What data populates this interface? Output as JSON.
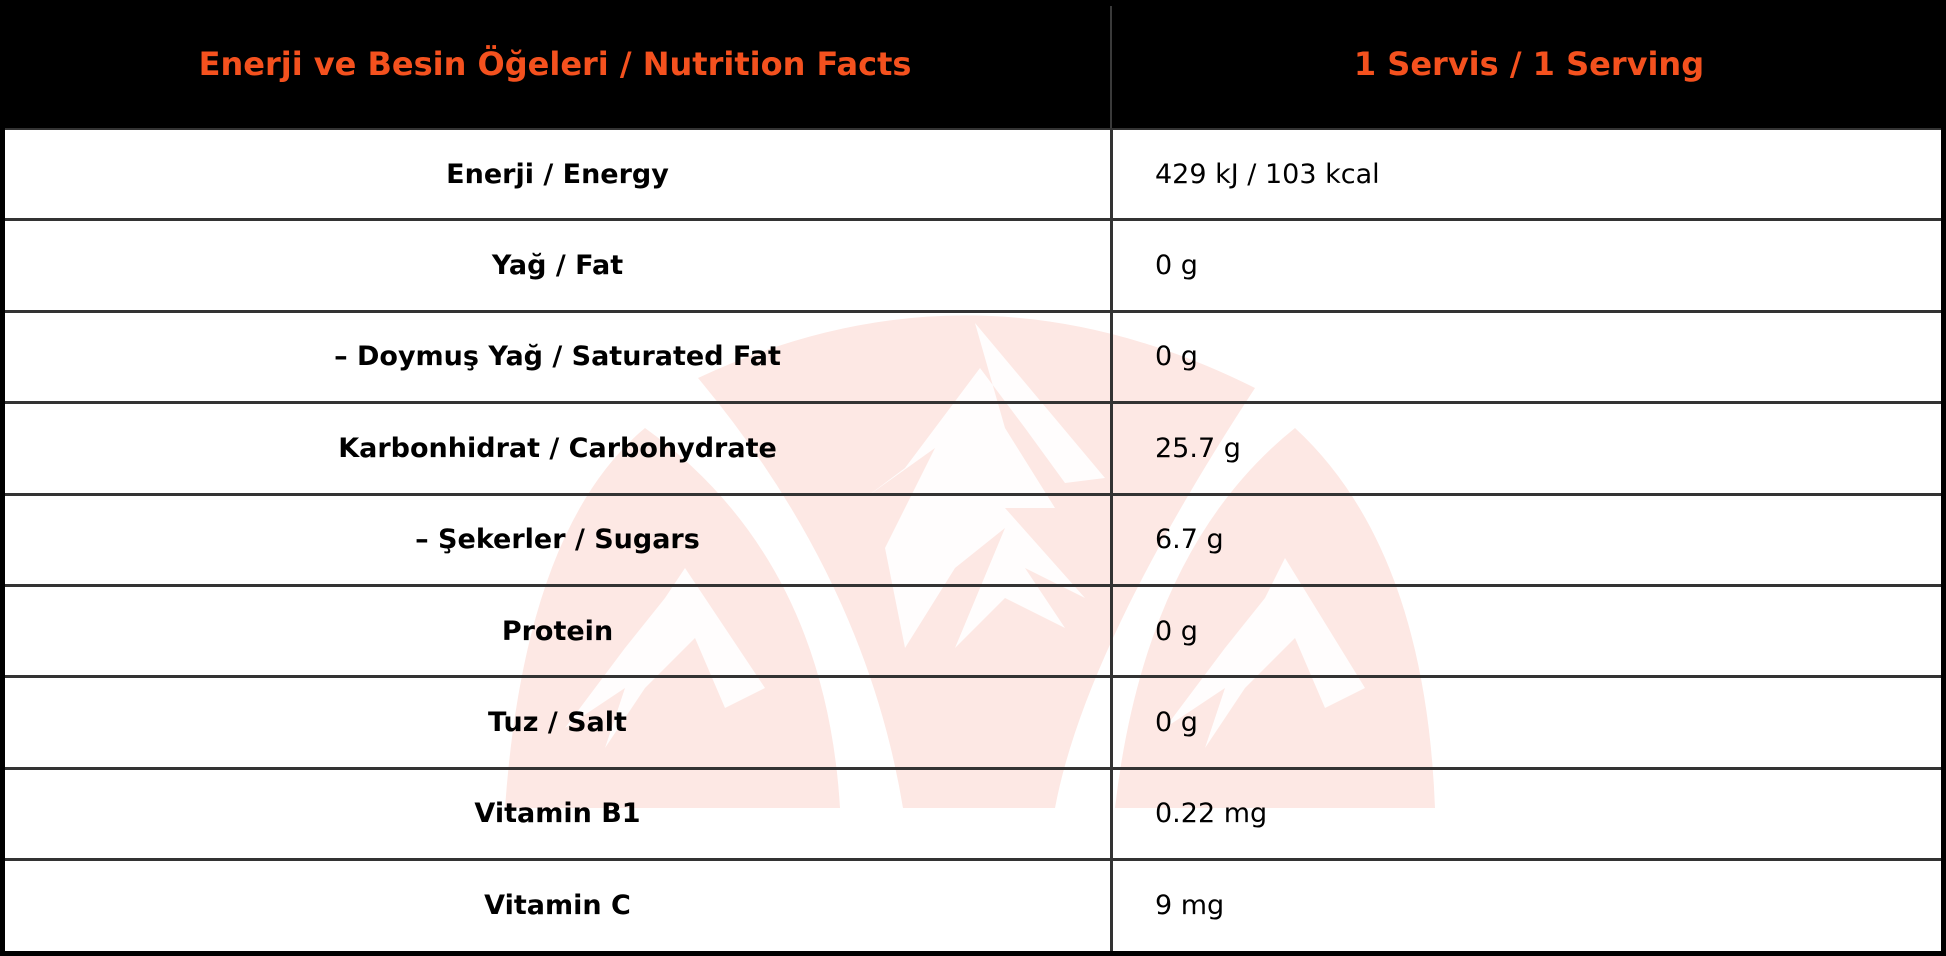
{
  "header": {
    "col1": "Enerji ve Besin Öğeleri / Nutrition Facts",
    "col2": "1 Servis / 1 Serving"
  },
  "colors": {
    "accent": "#f4511e",
    "watermark": "#fde8e4"
  },
  "watermark_icon": "mountain-logo",
  "rows": [
    {
      "label": "Enerji / Energy",
      "value": "429 kJ / 103 kcal"
    },
    {
      "label": "Yağ / Fat",
      "value": "0 g"
    },
    {
      "label": "– Doymuş Yağ / Saturated Fat",
      "value": "0 g"
    },
    {
      "label": "Karbonhidrat / Carbohydrate",
      "value": "25.7 g"
    },
    {
      "label": "– Şekerler / Sugars",
      "value": "6.7 g"
    },
    {
      "label": "Protein",
      "value": "0 g"
    },
    {
      "label": "Tuz / Salt",
      "value": "0 g"
    },
    {
      "label": "Vitamin B1",
      "value": "0.22 mg"
    },
    {
      "label": "Vitamin C",
      "value": "9 mg"
    }
  ]
}
